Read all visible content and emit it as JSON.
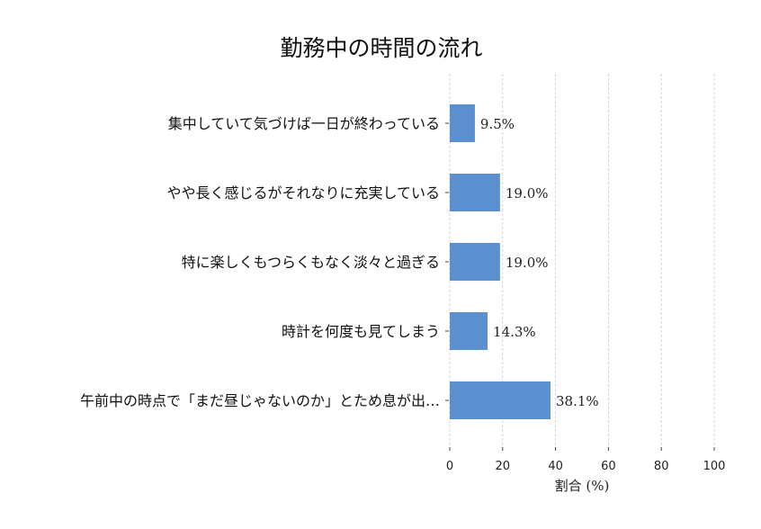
{
  "chart_data": {
    "type": "bar",
    "orientation": "horizontal",
    "title": "勤務中の時間の流れ",
    "xlabel": "割合 (%)",
    "ylabel": "",
    "xlim": [
      0,
      100
    ],
    "xticks": [
      "0",
      "20",
      "40",
      "60",
      "80",
      "100"
    ],
    "grid": true,
    "categories": [
      "集中していて気づけば一日が終わっている",
      "やや長く感じるがそれなりに充実している",
      "特に楽しくもつらくもなく淡々と過ぎる",
      "時計を何度も見てしまう",
      "午前中の時点で「まだ昼じゃないのか」とため息が出…"
    ],
    "values": [
      9.5,
      19.0,
      19.0,
      14.3,
      38.1
    ],
    "value_labels": [
      "9.5%",
      "19.0%",
      "19.0%",
      "14.3%",
      "38.1%"
    ],
    "bar_color": "#5b8fd0"
  }
}
